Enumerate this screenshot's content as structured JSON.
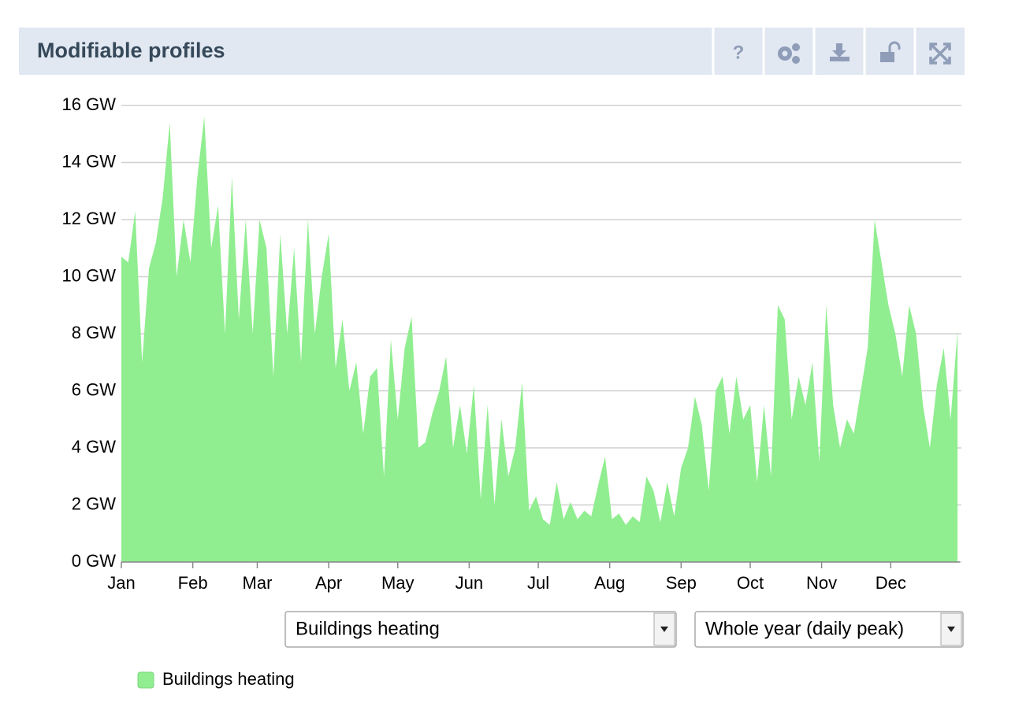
{
  "header": {
    "title": "Modifiable profiles",
    "help_label": "?"
  },
  "chart_data": {
    "type": "area",
    "x": [
      0,
      3,
      6,
      9,
      12,
      15,
      18,
      21,
      24,
      27,
      30,
      33,
      36,
      39,
      42,
      45,
      48,
      51,
      54,
      57,
      60,
      63,
      66,
      69,
      72,
      75,
      78,
      81,
      84,
      87,
      90,
      93,
      96,
      99,
      102,
      105,
      108,
      111,
      114,
      117,
      120,
      123,
      126,
      129,
      132,
      135,
      138,
      141,
      144,
      147,
      150,
      153,
      156,
      159,
      162,
      165,
      168,
      171,
      174,
      177,
      180,
      183,
      186,
      189,
      192,
      195,
      198,
      201,
      204,
      207,
      210,
      213,
      216,
      219,
      222,
      225,
      228,
      231,
      234,
      237,
      240,
      243,
      246,
      249,
      252,
      255,
      258,
      261,
      264,
      267,
      270,
      273,
      276,
      279,
      282,
      285,
      288,
      291,
      294,
      297,
      300,
      303,
      306,
      309,
      312,
      315,
      318,
      321,
      324,
      327,
      330,
      333,
      336,
      339,
      342,
      345,
      348,
      351,
      354,
      357,
      360,
      363
    ],
    "series": [
      {
        "name": "Buildings heating",
        "color": "#90ee90",
        "values": [
          10.7,
          10.5,
          12.3,
          7.0,
          10.3,
          11.2,
          12.8,
          15.4,
          10.0,
          12.0,
          10.5,
          13.5,
          15.6,
          11.0,
          12.5,
          8.0,
          13.5,
          8.5,
          12.0,
          8.0,
          12.0,
          11.0,
          6.5,
          11.5,
          8.0,
          11.0,
          7.0,
          12.0,
          8.0,
          10.0,
          11.5,
          6.8,
          8.5,
          6.0,
          7.0,
          4.5,
          6.5,
          6.8,
          3.0,
          7.8,
          5.0,
          7.5,
          8.6,
          4.0,
          4.2,
          5.2,
          6.0,
          7.2,
          4.0,
          5.5,
          3.8,
          6.2,
          2.2,
          5.5,
          2.0,
          5.0,
          3.0,
          4.0,
          6.3,
          1.8,
          2.3,
          1.5,
          1.3,
          2.8,
          1.5,
          2.1,
          1.5,
          1.8,
          1.6,
          2.7,
          3.7,
          1.5,
          1.7,
          1.3,
          1.6,
          1.4,
          3.0,
          2.5,
          1.4,
          2.8,
          1.6,
          3.3,
          4.0,
          5.8,
          4.8,
          2.5,
          6.0,
          6.5,
          4.5,
          6.5,
          5.0,
          5.5,
          2.8,
          5.5,
          3.0,
          9.0,
          8.5,
          5.0,
          6.5,
          5.5,
          7.0,
          3.5,
          9.0,
          5.5,
          4.0,
          5.0,
          4.5,
          6.0,
          7.5,
          12.0,
          10.5,
          9.0,
          8.0,
          6.5,
          9.0,
          8.0,
          5.5,
          4.0,
          6.2,
          7.5,
          5.0,
          8.1
        ]
      }
    ],
    "xlim": [
      0,
      364
    ],
    "xticks": [
      {
        "value": 0,
        "label": "Jan"
      },
      {
        "value": 31,
        "label": "Feb"
      },
      {
        "value": 59,
        "label": "Mar"
      },
      {
        "value": 90,
        "label": "Apr"
      },
      {
        "value": 120,
        "label": "May"
      },
      {
        "value": 151,
        "label": "Jun"
      },
      {
        "value": 181,
        "label": "Jul"
      },
      {
        "value": 212,
        "label": "Aug"
      },
      {
        "value": 243,
        "label": "Sep"
      },
      {
        "value": 273,
        "label": "Oct"
      },
      {
        "value": 304,
        "label": "Nov"
      },
      {
        "value": 334,
        "label": "Dec"
      }
    ],
    "ylim": [
      0,
      16
    ],
    "yticks": [
      {
        "value": 0,
        "label": "0 GW"
      },
      {
        "value": 2,
        "label": "2 GW"
      },
      {
        "value": 4,
        "label": "4 GW"
      },
      {
        "value": 6,
        "label": "6 GW"
      },
      {
        "value": 8,
        "label": "8 GW"
      },
      {
        "value": 10,
        "label": "10 GW"
      },
      {
        "value": 12,
        "label": "12 GW"
      },
      {
        "value": 14,
        "label": "14 GW"
      },
      {
        "value": 16,
        "label": "16 GW"
      }
    ],
    "grid": true
  },
  "controls": {
    "profile_select": "Buildings heating",
    "period_select": "Whole year (daily peak)"
  }
}
